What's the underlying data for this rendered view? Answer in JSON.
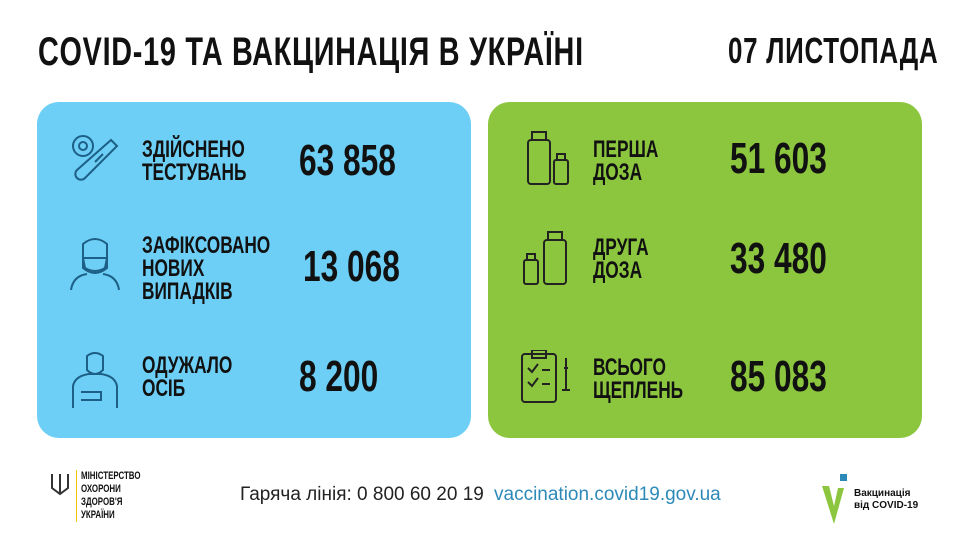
{
  "header": {
    "title": "COVID-19 ТА ВАКЦИНАЦІЯ В УКРАЇНІ",
    "date": "07 ЛИСТОПАДА"
  },
  "colors": {
    "left_panel": "#6dcff6",
    "right_panel": "#8cc63f",
    "icon_stroke": "#1d5f86",
    "url": "#2d8ab8"
  },
  "left": [
    {
      "icon": "test-tube-virus-icon",
      "label": [
        "ЗДІЙСНЕНО",
        "ТЕСТУВАНЬ"
      ],
      "value": "63 858"
    },
    {
      "icon": "masked-person-icon",
      "label": [
        "ЗАФІКСОВАНО",
        "НОВИХ",
        "ВИПАДКІВ"
      ],
      "value": "13 068"
    },
    {
      "icon": "recovered-person-icon",
      "label": [
        "ОДУЖАЛО",
        "ОСІБ"
      ],
      "value": "8 200"
    }
  ],
  "right": [
    {
      "icon": "vaccine-vials-icon",
      "label": [
        "ПЕРША",
        "ДОЗА"
      ],
      "value": "51 603"
    },
    {
      "icon": "vaccine-vials-icon",
      "label": [
        "ДРУГА",
        "ДОЗА"
      ],
      "value": "33 480"
    },
    {
      "icon": "clipboard-syringe-icon",
      "label": [
        "ВСЬОГО",
        "ЩЕПЛЕНЬ"
      ],
      "value": "85 083"
    }
  ],
  "footer": {
    "ministry": [
      "МІНІСТЕРСТВО",
      "ОХОРОНИ",
      "ЗДОРОВ'Я",
      "УКРАЇНИ"
    ],
    "hotline": "Гаряча лінія: 0 800 60 20 19",
    "url": "vaccination.covid19.gov.ua",
    "vacc_logo": [
      "Вакцинація",
      "від COVID-19"
    ]
  }
}
